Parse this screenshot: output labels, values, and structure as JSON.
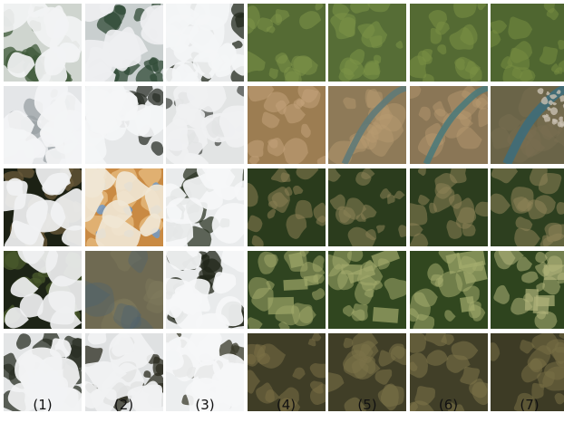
{
  "figure": {
    "column_labels": [
      "(1)",
      "(2)",
      "(3)",
      "(4)",
      "(5)",
      "(6)",
      "(7)"
    ],
    "rows": [
      {
        "tiles": [
          {
            "content": "thin-cloud-over-vegetation",
            "base": "#cfd5cf",
            "accent": "#3f5a3a",
            "cloud": "#f2f3f4"
          },
          {
            "content": "broken-cloud-over-vegetation",
            "base": "#c9cfcf",
            "accent": "#2f4a36",
            "cloud": "#eeeff1"
          },
          {
            "content": "mostly-cloud-with-dark-gap",
            "base": "#e7e9ea",
            "accent": "#232a1e",
            "cloud": "#f4f5f6"
          },
          {
            "content": "clear-terrain",
            "base": "#556b34",
            "accent": "#7e9448",
            "cloud": ""
          },
          {
            "content": "clear-terrain",
            "base": "#566d36",
            "accent": "#7c9347",
            "cloud": ""
          },
          {
            "content": "clear-terrain",
            "base": "#546a33",
            "accent": "#7a9044",
            "cloud": ""
          },
          {
            "content": "clear-terrain",
            "base": "#4f6630",
            "accent": "#778d42",
            "cloud": ""
          }
        ]
      },
      {
        "tiles": [
          {
            "content": "full-cloud",
            "base": "#e4e6e8",
            "accent": "#9aa0a4",
            "cloud": "#f3f4f5"
          },
          {
            "content": "mostly-cloud-with-dark-spots",
            "base": "#e6e8e9",
            "accent": "#2b3028",
            "cloud": "#f4f5f6"
          },
          {
            "content": "thin-cloud-with-dark-streaks",
            "base": "#e2e4e4",
            "accent": "#4a4d4a",
            "cloud": "#f0f1f2"
          },
          {
            "content": "arid-terrain",
            "base": "#9c7d52",
            "accent": "#c2a37a",
            "cloud": ""
          },
          {
            "content": "arid-terrain-with-river",
            "base": "#8e7a58",
            "accent": "#5f7a78",
            "cloud": ""
          },
          {
            "content": "arid-terrain-with-river",
            "base": "#8a7656",
            "accent": "#4d7a7a",
            "cloud": ""
          },
          {
            "content": "terrain-with-river-and-town",
            "base": "#6a6448",
            "accent": "#3e6d7a",
            "cloud": ""
          }
        ]
      },
      {
        "tiles": [
          {
            "content": "dark-with-cloud",
            "base": "#1c2114",
            "accent": "#6a5a3a",
            "cloud": "#f1f2f3"
          },
          {
            "content": "colored-cloud-artifact",
            "base": "#c98a43",
            "accent": "#6a9ad0",
            "cloud": "#f0e6d4"
          },
          {
            "content": "cloud-over-dark-forest",
            "base": "#e9ebec",
            "accent": "#2c3526",
            "cloud": "#f5f6f7"
          },
          {
            "content": "forest-with-clearings",
            "base": "#2a3b1c",
            "accent": "#8a8054",
            "cloud": ""
          },
          {
            "content": "forest-with-clearings",
            "base": "#2b3c1d",
            "accent": "#8b8155",
            "cloud": ""
          },
          {
            "content": "forest-with-clearings",
            "base": "#2c3d1e",
            "accent": "#8c8256",
            "cloud": ""
          },
          {
            "content": "forest-with-clearings",
            "base": "#2d3f1f",
            "accent": "#8e8458",
            "cloud": ""
          }
        ]
      },
      {
        "tiles": [
          {
            "content": "dark-with-cloud",
            "base": "#1d2416",
            "accent": "#4a5a2c",
            "cloud": "#eff0f1"
          },
          {
            "content": "haze",
            "base": "#6f6a52",
            "accent": "#4a6072",
            "cloud": ""
          },
          {
            "content": "broken-cloud-over-dark",
            "base": "#e9ebec",
            "accent": "#20261a",
            "cloud": "#f5f6f7"
          },
          {
            "content": "forest-and-fields",
            "base": "#2f4420",
            "accent": "#a0a86a",
            "cloud": ""
          },
          {
            "content": "forest-and-fields",
            "base": "#30461f",
            "accent": "#a2aa6c",
            "cloud": ""
          },
          {
            "content": "forest-and-fields",
            "base": "#31471f",
            "accent": "#a4ac6e",
            "cloud": ""
          },
          {
            "content": "forest-and-fields",
            "base": "#2e441e",
            "accent": "#b0b47a",
            "cloud": ""
          }
        ]
      },
      {
        "tiles": [
          {
            "content": "cloud-over-dark",
            "base": "#e3e5e6",
            "accent": "#2a2f24",
            "cloud": "#f2f3f4"
          },
          {
            "content": "broken-cloud-over-dark",
            "base": "#dfe1e2",
            "accent": "#2a2a1e",
            "cloud": "#f1f2f3"
          },
          {
            "content": "mostly-cloud",
            "base": "#eceeef",
            "accent": "#3a3a2a",
            "cloud": "#f5f6f7"
          },
          {
            "content": "hilly-terrain",
            "base": "#3f3d26",
            "accent": "#7a7046",
            "cloud": ""
          },
          {
            "content": "hilly-terrain",
            "base": "#403e27",
            "accent": "#7c7248",
            "cloud": ""
          },
          {
            "content": "hilly-terrain",
            "base": "#413f28",
            "accent": "#7e7449",
            "cloud": ""
          },
          {
            "content": "hilly-terrain",
            "base": "#3d3b25",
            "accent": "#787045",
            "cloud": ""
          }
        ]
      }
    ]
  }
}
